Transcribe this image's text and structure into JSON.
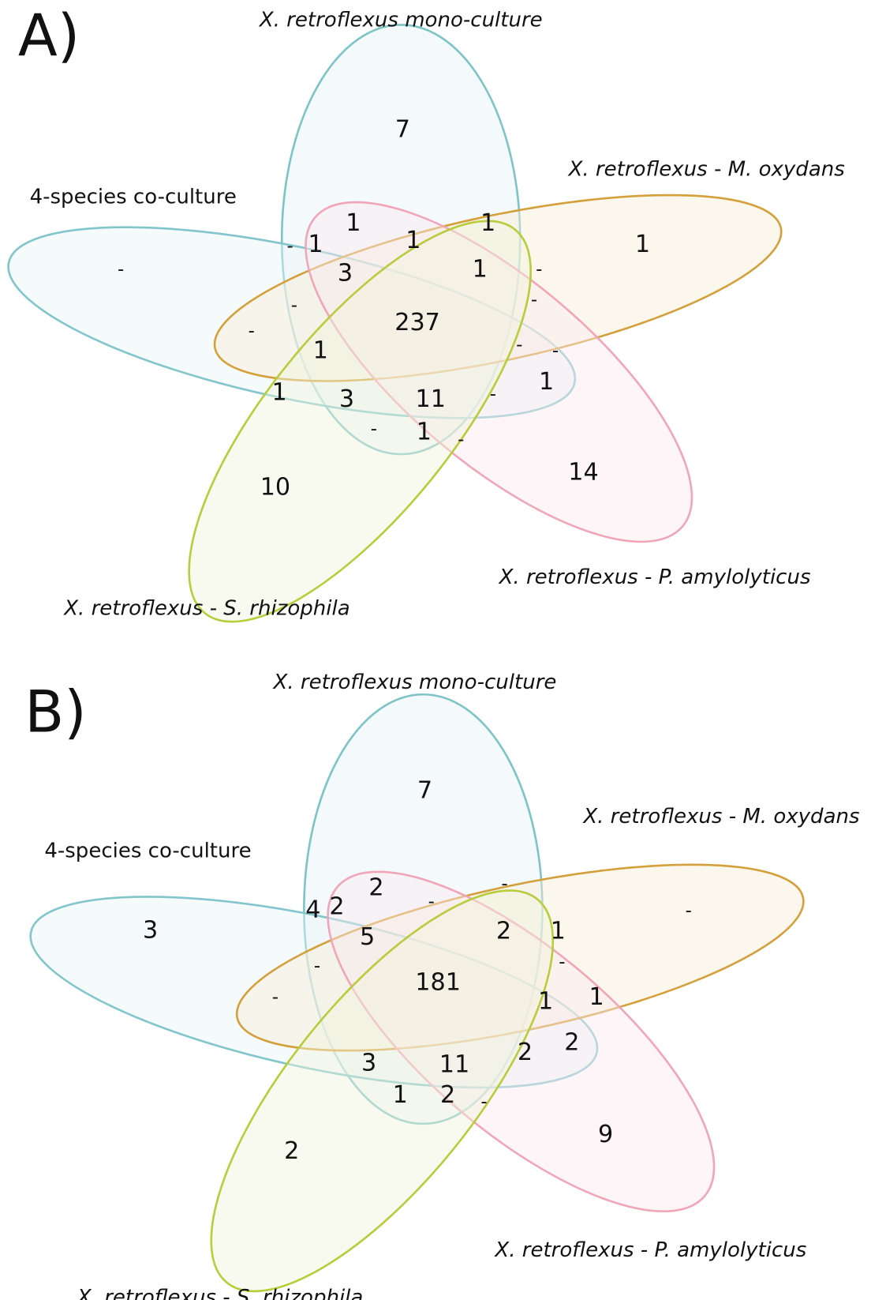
{
  "panels": [
    {
      "label": "A)",
      "sets": [
        {
          "name": "X. retroflexus mono-culture"
        },
        {
          "name": "4-species co-culture"
        },
        {
          "name": "X. retroflexus - M. oxydans"
        },
        {
          "name": "X. retroflexus - P. amylolyticus"
        },
        {
          "name": "X. retroflexus - S. rhizophila"
        }
      ],
      "regions": [
        7,
        1,
        "-",
        10,
        14,
        1,
        1,
        "-",
        1,
        1,
        3,
        1,
        "-",
        "-",
        "-",
        "-",
        237,
        1,
        "-",
        "-",
        1,
        1,
        3,
        11,
        "-",
        "-",
        1,
        "-"
      ]
    },
    {
      "label": "B)",
      "sets": [
        {
          "name": "X. retroflexus mono-culture"
        },
        {
          "name": "4-species co-culture"
        },
        {
          "name": "X. retroflexus - M. oxydans"
        },
        {
          "name": "X. retroflexus - P. amylolyticus"
        },
        {
          "name": "X. retroflexus - S. rhizophila"
        }
      ],
      "regions": [
        7,
        "-",
        3,
        2,
        9,
        2,
        "-",
        4,
        2,
        "-",
        5,
        2,
        1,
        "-",
        "-",
        "-",
        181,
        1,
        1,
        3,
        11,
        2,
        2,
        1,
        2,
        "-"
      ]
    }
  ]
}
